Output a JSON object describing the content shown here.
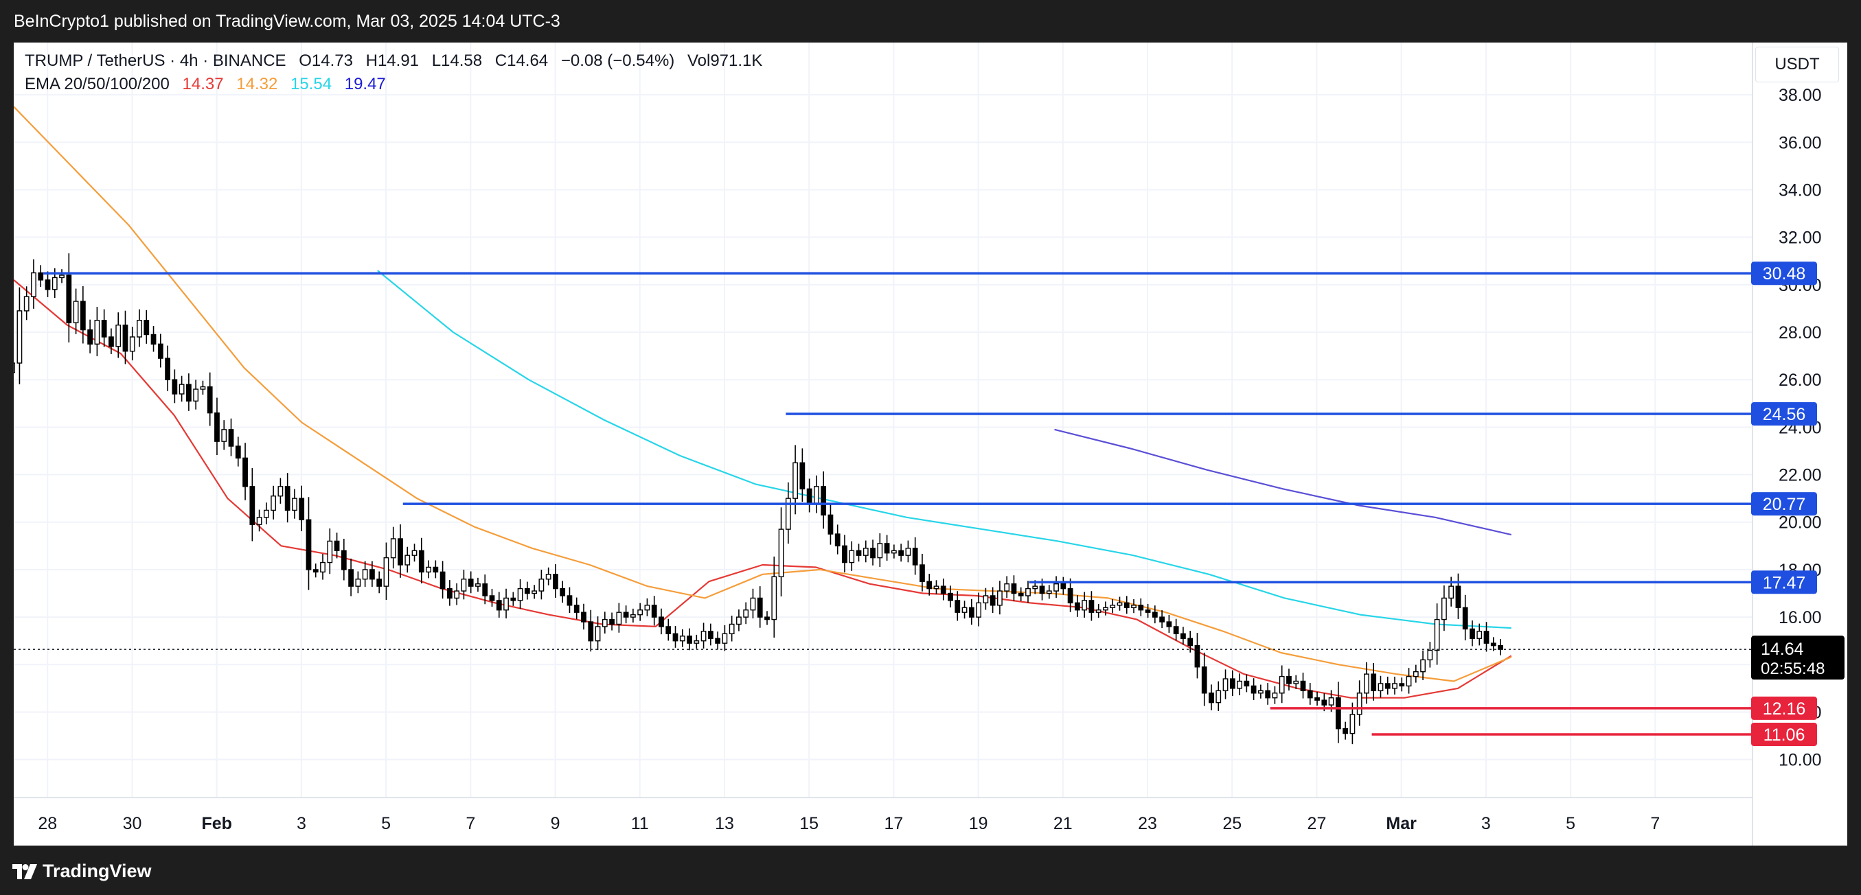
{
  "header": {
    "publisher_line": "BeInCrypto1 published on TradingView.com, Mar 03, 2025 14:04 UTC-3"
  },
  "legend": {
    "symbol": "TRUMP / TetherUS · 4h · BINANCE",
    "open": "O14.73",
    "high": "H14.91",
    "low": "L14.58",
    "close": "C14.64",
    "change": "−0.08 (−0.54%)",
    "volume": "Vol971.1K",
    "ema_label": "EMA 20/50/100/200",
    "ema20": "14.37",
    "ema50": "14.32",
    "ema100": "15.54",
    "ema200": "19.47"
  },
  "currency": "USDT",
  "footer": {
    "brand": "TradingView"
  },
  "colors": {
    "up_candle": "#ffffff",
    "down_candle": "#000000",
    "wick": "#000000",
    "ema20": "#e53935",
    "ema50": "#f59d3a",
    "ema100": "#27d5e8",
    "ema200": "#5a4fd6",
    "resistance": "#1e4fe0",
    "support": "#e8243c",
    "price_tag": "#000000"
  },
  "chart_data": {
    "type": "candlestick",
    "title": "TRUMP / TetherUS · 4h · BINANCE",
    "ylim": [
      8.4,
      40.2
    ],
    "y_ticks": [
      "10.00",
      "12.00",
      "14.00",
      "16.00",
      "18.00",
      "20.00",
      "22.00",
      "24.00",
      "26.00",
      "28.00",
      "30.00",
      "32.00",
      "34.00",
      "36.00",
      "38.00"
    ],
    "x_ticks": [
      {
        "label": "28",
        "day": 0,
        "bold": false
      },
      {
        "label": "30",
        "day": 2,
        "bold": false
      },
      {
        "label": "Feb",
        "day": 4,
        "bold": true
      },
      {
        "label": "3",
        "day": 6,
        "bold": false
      },
      {
        "label": "5",
        "day": 8,
        "bold": false
      },
      {
        "label": "7",
        "day": 10,
        "bold": false
      },
      {
        "label": "9",
        "day": 12,
        "bold": false
      },
      {
        "label": "11",
        "day": 14,
        "bold": false
      },
      {
        "label": "13",
        "day": 16,
        "bold": false
      },
      {
        "label": "15",
        "day": 18,
        "bold": false
      },
      {
        "label": "17",
        "day": 20,
        "bold": false
      },
      {
        "label": "19",
        "day": 22,
        "bold": false
      },
      {
        "label": "21",
        "day": 24,
        "bold": false
      },
      {
        "label": "23",
        "day": 26,
        "bold": false
      },
      {
        "label": "25",
        "day": 28,
        "bold": false
      },
      {
        "label": "27",
        "day": 30,
        "bold": false
      },
      {
        "label": "Mar",
        "day": 32,
        "bold": true
      },
      {
        "label": "3",
        "day": 34,
        "bold": false
      },
      {
        "label": "5",
        "day": 36,
        "bold": false
      },
      {
        "label": "7",
        "day": 38,
        "bold": false
      }
    ],
    "x_range_days": [
      -0.8,
      40.3
    ],
    "candle_interval_days": 0.1667,
    "first_candle_day": -0.83,
    "candle_closes": [
      26.7,
      28.9,
      29.5,
      30.5,
      30.2,
      29.8,
      30.3,
      30.4,
      28.4,
      29.3,
      28.1,
      27.5,
      28.5,
      27.8,
      27.4,
      28.3,
      27.2,
      27.8,
      28.5,
      27.9,
      27.5,
      26.9,
      26.0,
      25.4,
      25.8,
      25.1,
      25.6,
      25.7,
      24.6,
      23.4,
      23.9,
      23.2,
      22.7,
      21.5,
      19.9,
      20.2,
      20.5,
      21.1,
      21.5,
      20.5,
      21.0,
      20.1,
      18.0,
      17.9,
      18.3,
      19.2,
      18.8,
      18.0,
      17.3,
      17.6,
      18.0,
      17.6,
      17.3,
      18.5,
      19.3,
      18.2,
      18.6,
      18.8,
      17.9,
      18.1,
      17.9,
      17.2,
      16.8,
      17.1,
      17.6,
      17.3,
      17.4,
      16.9,
      16.7,
      16.3,
      16.8,
      16.7,
      17.2,
      17.0,
      17.1,
      17.6,
      17.8,
      17.2,
      16.9,
      16.5,
      16.2,
      15.8,
      15.0,
      15.6,
      15.9,
      15.7,
      16.2,
      16.0,
      16.1,
      16.3,
      16.5,
      16.0,
      15.6,
      15.3,
      15.0,
      15.2,
      14.9,
      15.0,
      15.4,
      15.1,
      14.9,
      15.3,
      15.7,
      16.0,
      16.3,
      16.8,
      16.0,
      15.9,
      17.7,
      19.7,
      21.0,
      22.5,
      21.4,
      20.8,
      21.5,
      20.3,
      19.5,
      19.0,
      18.3,
      18.8,
      18.6,
      18.9,
      18.5,
      19.1,
      18.7,
      18.8,
      18.6,
      18.9,
      18.2,
      17.5,
      17.2,
      17.3,
      17.0,
      16.7,
      16.2,
      16.4,
      16.0,
      16.6,
      16.9,
      16.5,
      17.1,
      17.4,
      17.0,
      16.9,
      17.2,
      17.3,
      17.0,
      17.1,
      17.4,
      17.2,
      16.6,
      16.3,
      16.7,
      16.2,
      16.3,
      16.4,
      16.5,
      16.6,
      16.4,
      16.5,
      16.3,
      16.2,
      16.0,
      15.8,
      15.6,
      15.3,
      15.1,
      14.8,
      13.9,
      12.8,
      12.4,
      12.9,
      13.4,
      13.0,
      13.3,
      13.1,
      12.8,
      12.9,
      12.6,
      12.8,
      13.5,
      13.2,
      13.3,
      12.9,
      12.6,
      12.5,
      12.3,
      12.6,
      11.3,
      11.1,
      11.9,
      12.8,
      13.6,
      12.9,
      13.2,
      13.0,
      13.2,
      13.1,
      13.5,
      13.7,
      14.2,
      14.6,
      15.9,
      16.8,
      17.3,
      16.4,
      15.5,
      15.1,
      15.4,
      14.9,
      14.8,
      14.64
    ],
    "ema_series": [
      {
        "name": "EMA 20",
        "last": 14.37,
        "start_day": -0.8,
        "end_day": 34.6,
        "points": [
          30.2,
          28.3,
          27.1,
          24.5,
          21.0,
          19.0,
          18.6,
          18.0,
          17.2,
          16.6,
          16.1,
          15.7,
          15.6,
          17.5,
          18.2,
          18.1,
          17.4,
          17.0,
          16.9,
          16.6,
          16.4,
          15.9,
          14.7,
          13.6,
          13.0,
          12.6,
          12.6,
          13.0,
          14.37
        ]
      },
      {
        "name": "EMA 50",
        "last": 14.32,
        "start_day": -0.8,
        "end_day": 34.6,
        "points": [
          37.5,
          35.0,
          32.5,
          29.5,
          26.5,
          24.2,
          22.6,
          21.0,
          19.8,
          18.9,
          18.2,
          17.3,
          16.8,
          17.8,
          18.0,
          17.6,
          17.2,
          17.1,
          17.0,
          16.8,
          16.2,
          15.4,
          14.5,
          14.0,
          13.6,
          13.3,
          14.32
        ]
      },
      {
        "name": "EMA 100",
        "last": 15.54,
        "start_day": 7.8,
        "end_day": 34.6,
        "points": [
          30.6,
          28.0,
          26.0,
          24.3,
          22.8,
          21.6,
          20.9,
          20.2,
          19.7,
          19.2,
          18.6,
          17.8,
          16.8,
          16.1,
          15.7,
          15.54
        ]
      },
      {
        "name": "EMA 200",
        "last": 19.47,
        "start_day": 23.8,
        "end_day": 34.6,
        "points": [
          23.9,
          23.1,
          22.2,
          21.4,
          20.7,
          20.2,
          19.47
        ]
      }
    ],
    "levels": [
      {
        "value": 30.48,
        "label": "30.48",
        "kind": "resistance",
        "start_day": -0.1
      },
      {
        "value": 24.56,
        "label": "24.56",
        "kind": "resistance",
        "start_day": 17.45
      },
      {
        "value": 20.77,
        "label": "20.77",
        "kind": "resistance",
        "start_day": 8.4
      },
      {
        "value": 17.47,
        "label": "17.47",
        "kind": "resistance",
        "start_day": 23.2
      },
      {
        "value": 12.16,
        "label": "12.16",
        "kind": "support",
        "start_day": 28.9
      },
      {
        "value": 11.06,
        "label": "11.06",
        "kind": "support",
        "start_day": 31.3
      }
    ],
    "last_price": {
      "value": 14.64,
      "label": "14.64",
      "countdown": "02:55:48"
    }
  }
}
